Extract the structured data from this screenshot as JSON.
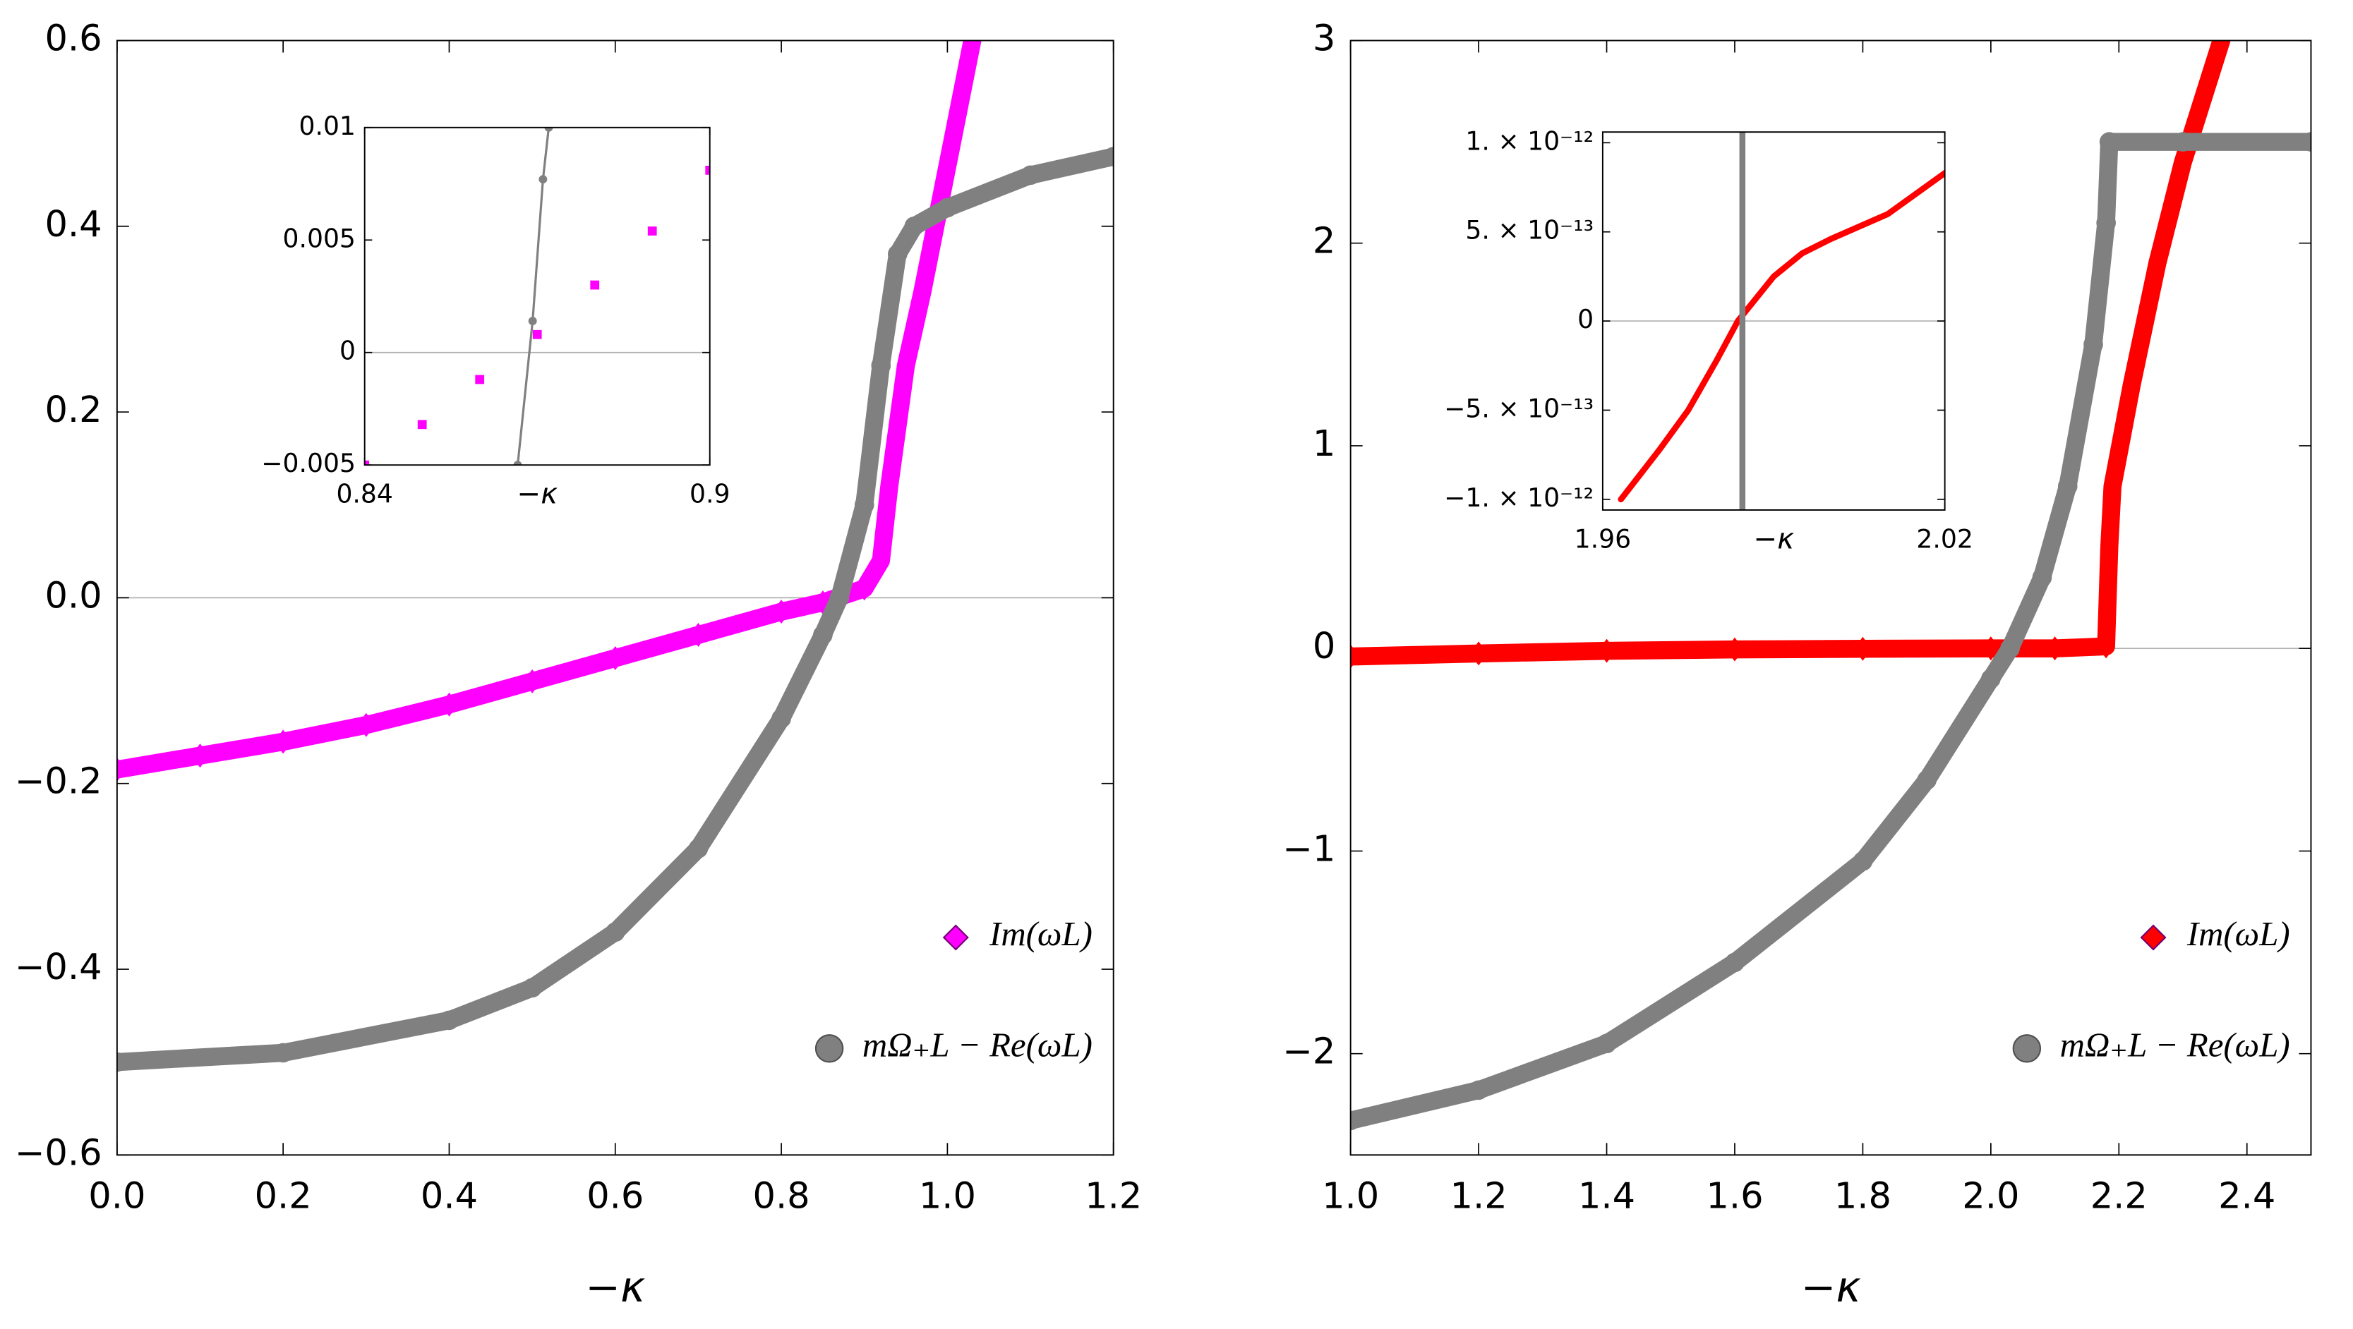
{
  "chart_data": [
    {
      "type": "scatter",
      "xlabel": "−κ",
      "xlim": [
        0,
        1.2
      ],
      "ylim": [
        -0.6,
        0.6
      ],
      "xticks": [
        {
          "value": 0,
          "label": "0.0"
        },
        0.2,
        0.4,
        0.6,
        0.8,
        {
          "value": 1,
          "label": "1.0"
        },
        1.2
      ],
      "yticks": [
        {
          "value": -0.6,
          "label": "−0.6"
        },
        {
          "value": -0.4,
          "label": "−0.4"
        },
        {
          "value": -0.2,
          "label": "−0.2"
        },
        {
          "value": 0,
          "label": "0.0"
        },
        0.2,
        0.4,
        0.6
      ],
      "zero_line": true,
      "legend": "lower right",
      "series": [
        {
          "name": "Im(ωL)",
          "color": "#ff00ff",
          "marker": "diamond",
          "x": [
            0,
            0.1,
            0.2,
            0.3,
            0.4,
            0.5,
            0.6,
            0.7,
            0.8,
            0.85,
            0.9,
            0.92,
            0.93,
            0.95,
            0.97,
            0.99,
            1.01,
            1.03
          ],
          "y": [
            -0.185,
            -0.17,
            -0.155,
            -0.137,
            -0.115,
            -0.09,
            -0.065,
            -0.04,
            -0.015,
            -0.005,
            0.01,
            0.04,
            0.12,
            0.25,
            0.33,
            0.42,
            0.51,
            0.6
          ]
        },
        {
          "name": "mΩ₊L − Re(ωL)",
          "color": "#808080",
          "marker": "circle",
          "x": [
            0,
            0.2,
            0.4,
            0.5,
            0.6,
            0.7,
            0.8,
            0.85,
            0.87,
            0.9,
            0.92,
            0.94,
            0.96,
            1.0,
            1.1,
            1.2
          ],
          "y": [
            -0.5,
            -0.49,
            -0.455,
            -0.42,
            -0.36,
            -0.27,
            -0.13,
            -0.04,
            0,
            0.1,
            0.25,
            0.37,
            0.4,
            0.42,
            0.455,
            0.475
          ]
        }
      ]
    },
    {
      "type": "scatter",
      "xlabel": "−κ",
      "xlim": [
        0.84,
        0.9
      ],
      "ylim": [
        -0.005,
        0.01
      ],
      "xticks": [
        0.84,
        0.9
      ],
      "yticks": [
        {
          "value": -0.005,
          "label": "−0.005"
        },
        0,
        0.005,
        0.01
      ],
      "zero_line": true,
      "series": [
        {
          "color": "#ff00ff",
          "marker": "square",
          "x": [
            0.84,
            0.85,
            0.86,
            0.87,
            0.88,
            0.89,
            0.9
          ],
          "y": [
            -0.005,
            -0.0032,
            -0.0012,
            0.0008,
            0.003,
            0.0054,
            0.0081
          ]
        },
        {
          "color": "#808080",
          "marker": "dot",
          "line": true,
          "x": [
            0.8666,
            0.8692,
            0.871,
            0.872
          ],
          "y": [
            -0.005,
            0.0014,
            0.0077,
            0.01
          ]
        }
      ]
    },
    {
      "type": "scatter",
      "xlabel": "−κ",
      "xlim": [
        1,
        2.5
      ],
      "ylim": [
        -2.5,
        3
      ],
      "xticks": [
        {
          "value": 1,
          "label": "1.0"
        },
        1.2,
        1.4,
        1.6,
        1.8,
        {
          "value": 2,
          "label": "2.0"
        },
        2.2,
        2.4
      ],
      "yticks": [
        {
          "value": -2,
          "label": "−2"
        },
        {
          "value": -1,
          "label": "−1"
        },
        0,
        1,
        2,
        3
      ],
      "zero_line": true,
      "legend": "lower right",
      "series": [
        {
          "name": "Im(ωL)",
          "color": "#ff0000",
          "marker": "diamond",
          "x": [
            1,
            1.2,
            1.4,
            1.6,
            1.8,
            2.0,
            2.1,
            2.18,
            2.185,
            2.19,
            2.22,
            2.26,
            2.3,
            2.36
          ],
          "y": [
            -0.04,
            -0.025,
            -0.012,
            -0.005,
            -0.002,
            0,
            0,
            0.01,
            0.5,
            0.8,
            1.3,
            1.9,
            2.4,
            3
          ]
        },
        {
          "name": "mΩ₊L − Re(ωL)",
          "color": "#808080",
          "marker": "circle",
          "x": [
            1,
            1.2,
            1.4,
            1.6,
            1.8,
            1.9,
            2.0,
            2.03,
            2.08,
            2.12,
            2.16,
            2.18,
            2.185,
            2.3,
            2.5
          ],
          "y": [
            -2.33,
            -2.18,
            -1.95,
            -1.55,
            -1.05,
            -0.65,
            -0.15,
            0,
            0.35,
            0.8,
            1.5,
            2.1,
            2.5,
            2.5,
            2.5
          ]
        }
      ]
    },
    {
      "type": "scatter",
      "xlabel": "−κ",
      "xlim": [
        1.96,
        2.02
      ],
      "ylim": [
        -1.06e-12,
        1.06e-12
      ],
      "xticks": [
        1.96,
        2.02
      ],
      "yticks": [
        {
          "value": -1e-12,
          "label": "−1. × 10⁻¹²"
        },
        {
          "value": -5e-13,
          "label": "−5. × 10⁻¹³"
        },
        0,
        {
          "value": 5e-13,
          "label": "5. × 10⁻¹³"
        },
        {
          "value": 1e-12,
          "label": "1. × 10⁻¹²"
        }
      ],
      "zero_line": true,
      "series": [
        {
          "color": "#ff0000",
          "marker": "line",
          "x": [
            1.9632,
            1.97,
            1.975,
            1.98,
            1.9837,
            1.99,
            1.995,
            2.0,
            2.01,
            2.02
          ],
          "y": [
            -1e-12,
            -7.2e-13,
            -5e-13,
            -2.2e-13,
            0,
            2.5e-13,
            3.8e-13,
            4.6e-13,
            6e-13,
            8.3e-13
          ]
        },
        {
          "color": "#808080",
          "marker": "line",
          "x": [
            1.9845,
            1.9845
          ],
          "y": [
            -1.06e-12,
            1.06e-12
          ]
        }
      ]
    }
  ]
}
